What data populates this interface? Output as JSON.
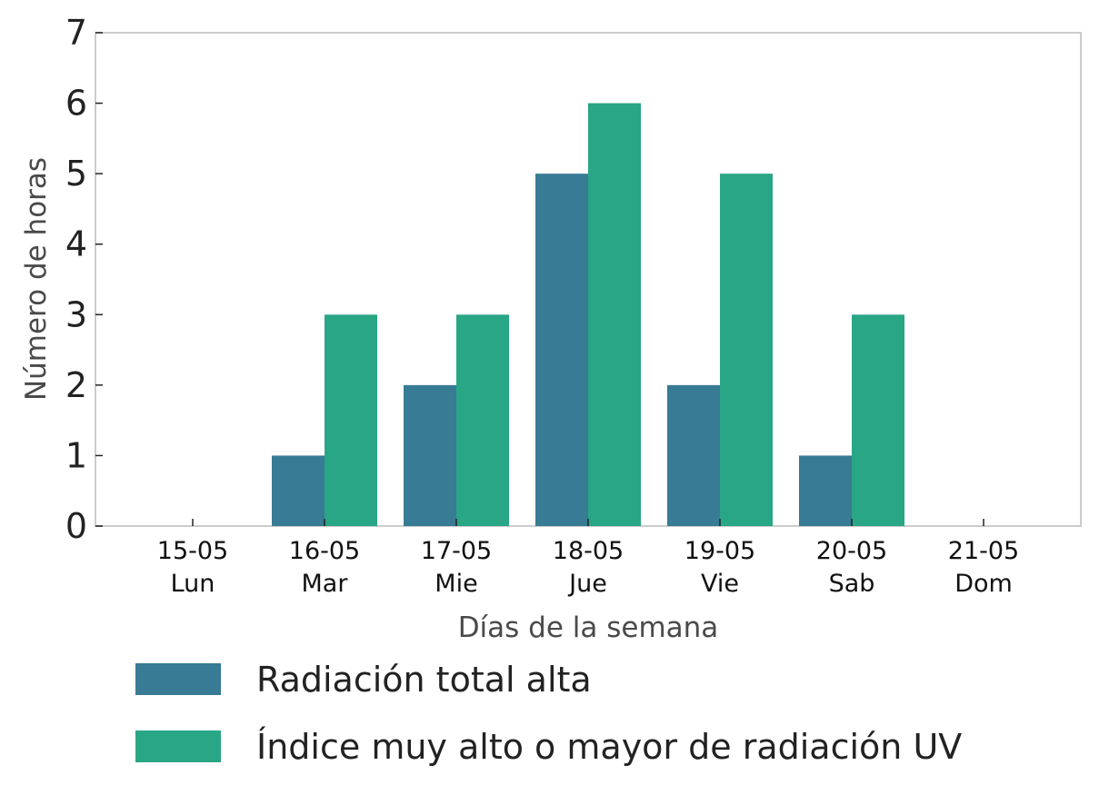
{
  "chart_data": {
    "type": "bar",
    "title": "",
    "xlabel": "Días de la semana",
    "ylabel": "Número de horas",
    "ylim": [
      0,
      7
    ],
    "yticks": [
      "0",
      "1",
      "2",
      "3",
      "4",
      "5",
      "6",
      "7"
    ],
    "grid": false,
    "legend_position": "bottom",
    "categories": [
      {
        "date": "15-05",
        "day": "Lun"
      },
      {
        "date": "16-05",
        "day": "Mar"
      },
      {
        "date": "17-05",
        "day": "Mie"
      },
      {
        "date": "18-05",
        "day": "Jue"
      },
      {
        "date": "19-05",
        "day": "Vie"
      },
      {
        "date": "20-05",
        "day": "Sab"
      },
      {
        "date": "21-05",
        "day": "Dom"
      }
    ],
    "series": [
      {
        "name": "Radiación total alta",
        "color": "#387b94",
        "values": [
          0,
          1,
          2,
          5,
          2,
          1,
          0
        ]
      },
      {
        "name": "Índice muy alto o mayor de radiación UV",
        "color": "#29a685",
        "values": [
          0,
          3,
          3,
          6,
          5,
          3,
          0
        ]
      }
    ]
  }
}
